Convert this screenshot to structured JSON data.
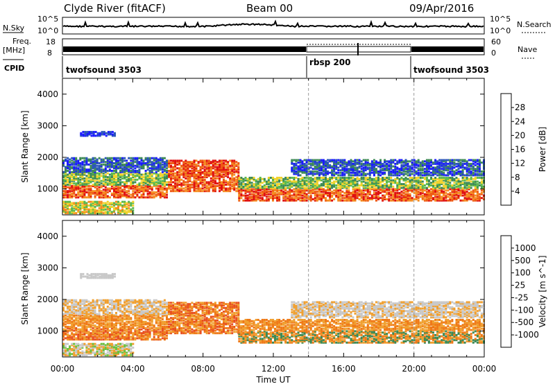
{
  "header": {
    "station": "Clyde River (fitACF)",
    "beam": "Beam 00",
    "date": "09/Apr/2016"
  },
  "strip_labels": {
    "nsky": "N.Sky",
    "nsearch": "N.Search",
    "freq_line1": "Freq.",
    "freq_line2": "[MHz]",
    "nave": "Nave",
    "cpid": "CPID"
  },
  "strip_ticks": {
    "noise_left": [
      "10^5",
      "10^0"
    ],
    "noise_right": [
      "10^5",
      "10^0"
    ],
    "freq_left": [
      "18",
      "8"
    ],
    "nave_right": [
      "60",
      "0"
    ]
  },
  "cpid_segments": [
    {
      "label": "twofsound 3503",
      "start": "00:00",
      "end": "14:00"
    },
    {
      "label": "rbsp 200",
      "start": "14:00",
      "end": "20:00"
    },
    {
      "label": "twofsound 3503",
      "start": "20:00",
      "end": "24:00"
    }
  ],
  "colors": {
    "power": [
      "#1a1aff",
      "#2a55b8",
      "#3d8a55",
      "#5ab84c",
      "#f0d22a",
      "#f58d20",
      "#ee5a14",
      "#e01010"
    ],
    "velocity": [
      "#1a2fb8",
      "#2a60b0",
      "#3d8a55",
      "#6cc040",
      "#c8c8c8",
      "#f0a030",
      "#ef7a18",
      "#e85020",
      "#e01010"
    ]
  },
  "chart_data": [
    {
      "type": "heatmap",
      "panel": "power",
      "xlabel": "Time UT",
      "ylabel": "Slant Range [km]",
      "xlim": [
        "00:00",
        "24:00"
      ],
      "ylim": [
        180,
        4500
      ],
      "yticks": [
        "1000",
        "2000",
        "3000",
        "4000"
      ],
      "xticks": [
        "00:00",
        "04:00",
        "08:00",
        "12:00",
        "16:00",
        "20:00",
        "00:00"
      ],
      "colorbar": {
        "label": "Power [dB]",
        "ticks": [
          "4",
          "8",
          "12",
          "16",
          "20",
          "24",
          "28"
        ]
      }
    },
    {
      "type": "heatmap",
      "panel": "velocity",
      "xlabel": "Time UT",
      "ylabel": "Slant Range [km]",
      "xlim": [
        "00:00",
        "24:00"
      ],
      "ylim": [
        180,
        4500
      ],
      "yticks": [
        "1000",
        "2000",
        "3000",
        "4000"
      ],
      "xticks": [
        "00:00",
        "04:00",
        "08:00",
        "12:00",
        "16:00",
        "20:00",
        "00:00"
      ],
      "colorbar": {
        "label": "Velocity [m s^-1]",
        "ticks": [
          "1000",
          "500",
          "100",
          "25",
          "-25",
          "-100",
          "-500",
          "-1000"
        ]
      }
    }
  ]
}
